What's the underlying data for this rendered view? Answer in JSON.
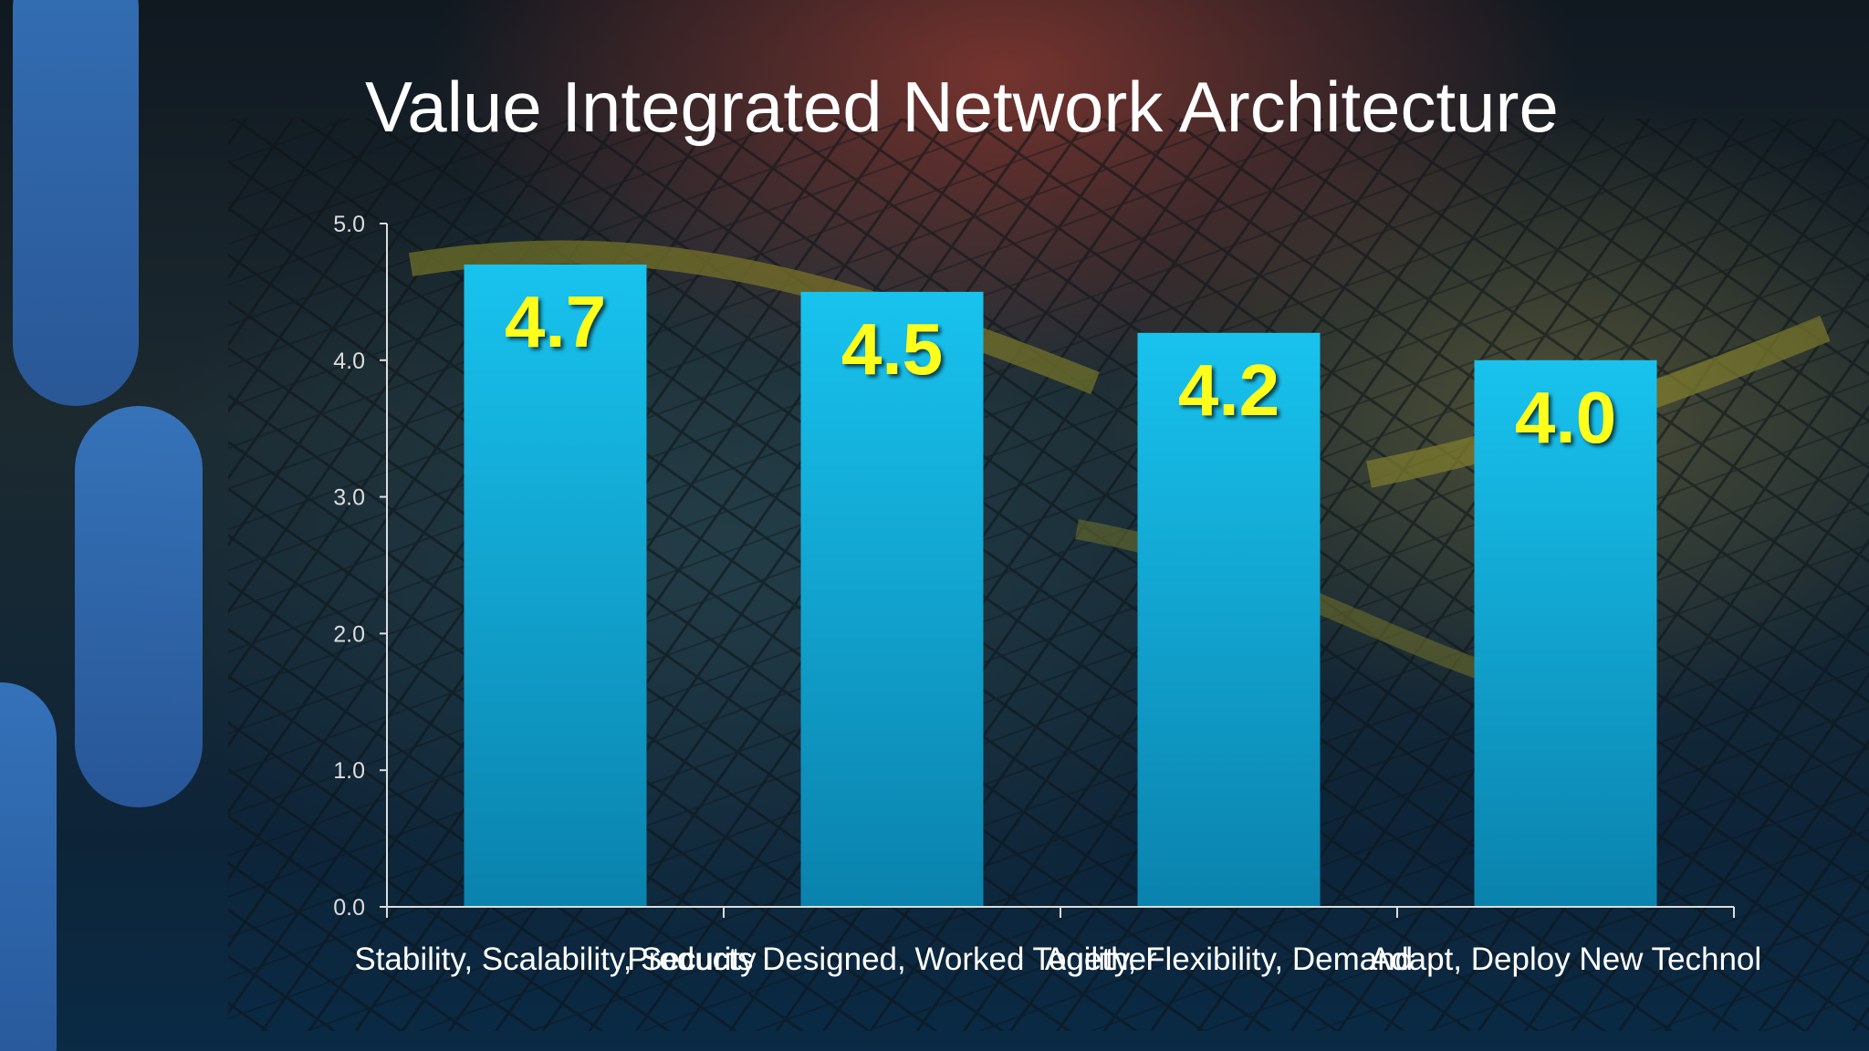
{
  "slide": {
    "title": "Value Integrated Network Architecture"
  },
  "chart_data": {
    "type": "bar",
    "categories": [
      "Stability, Scalability, Security",
      "Products Designed, Worked Together",
      "Agility, Flexibility, Demand",
      "Adapt, Deploy New Technol"
    ],
    "values": [
      4.7,
      4.5,
      4.2,
      4.0
    ],
    "data_labels": [
      "4.7",
      "4.5",
      "4.2",
      "4.0"
    ],
    "ylim": [
      0,
      5
    ],
    "yticks": [
      "0.0",
      "1.0",
      "2.0",
      "3.0",
      "4.0",
      "5.0"
    ],
    "grid": false,
    "legend": "none",
    "colors": {
      "bar_top": "#18c3ee",
      "bar_bottom": "#0a82ad",
      "data_label": "#ffff1a",
      "axis": "#dddddd",
      "text": "#ffffff"
    }
  }
}
